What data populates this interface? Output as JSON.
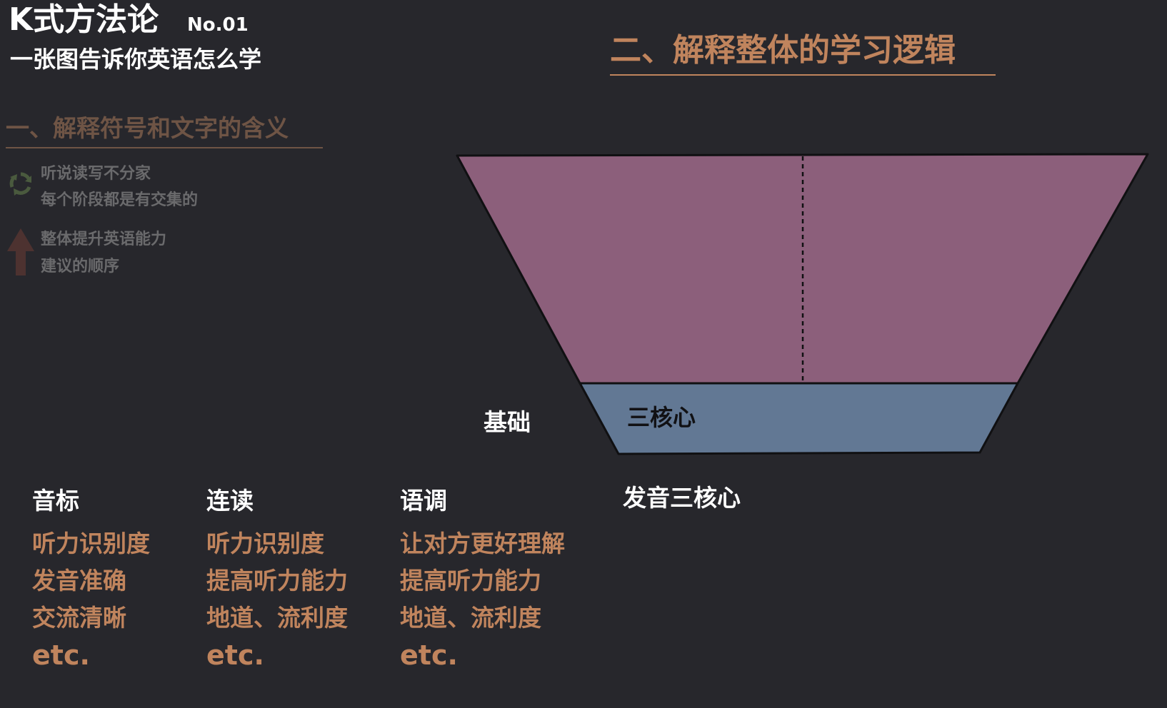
{
  "header": {
    "title": "K式方法论",
    "number": "No.01",
    "subtitle": "一张图告诉你英语怎么学"
  },
  "section1": {
    "heading": "一、解释符号和文字的含义",
    "legend": [
      {
        "icon": "cycle-arrows-icon",
        "line1": "听说读写不分家",
        "line2": "每个阶段都是有交集的"
      },
      {
        "icon": "up-arrow-icon",
        "line1": "整体提升英语能力",
        "line2": "建议的顺序"
      }
    ]
  },
  "section2": {
    "heading": "二、解释整体的学习逻辑"
  },
  "diagram": {
    "base_label": "基础",
    "core_label": "三核心",
    "pronunciation_label": "发音三核心"
  },
  "columns": [
    {
      "heading": "音标",
      "items": [
        "听力识别度",
        "发音准确",
        "交流清晰"
      ],
      "etc": "etc."
    },
    {
      "heading": "连读",
      "items": [
        "听力识别度",
        "提高听力能力",
        "地道、流利度"
      ],
      "etc": "etc."
    },
    {
      "heading": "语调",
      "items": [
        "让对方更好理解",
        "提高听力能力",
        "地道、流利度"
      ],
      "etc": "etc."
    }
  ],
  "colors": {
    "background": "#27272c",
    "accent": "#c0845d",
    "accent_dim": "#6e5445",
    "funnel_top": "#8c5f7b",
    "funnel_base": "#627894"
  }
}
